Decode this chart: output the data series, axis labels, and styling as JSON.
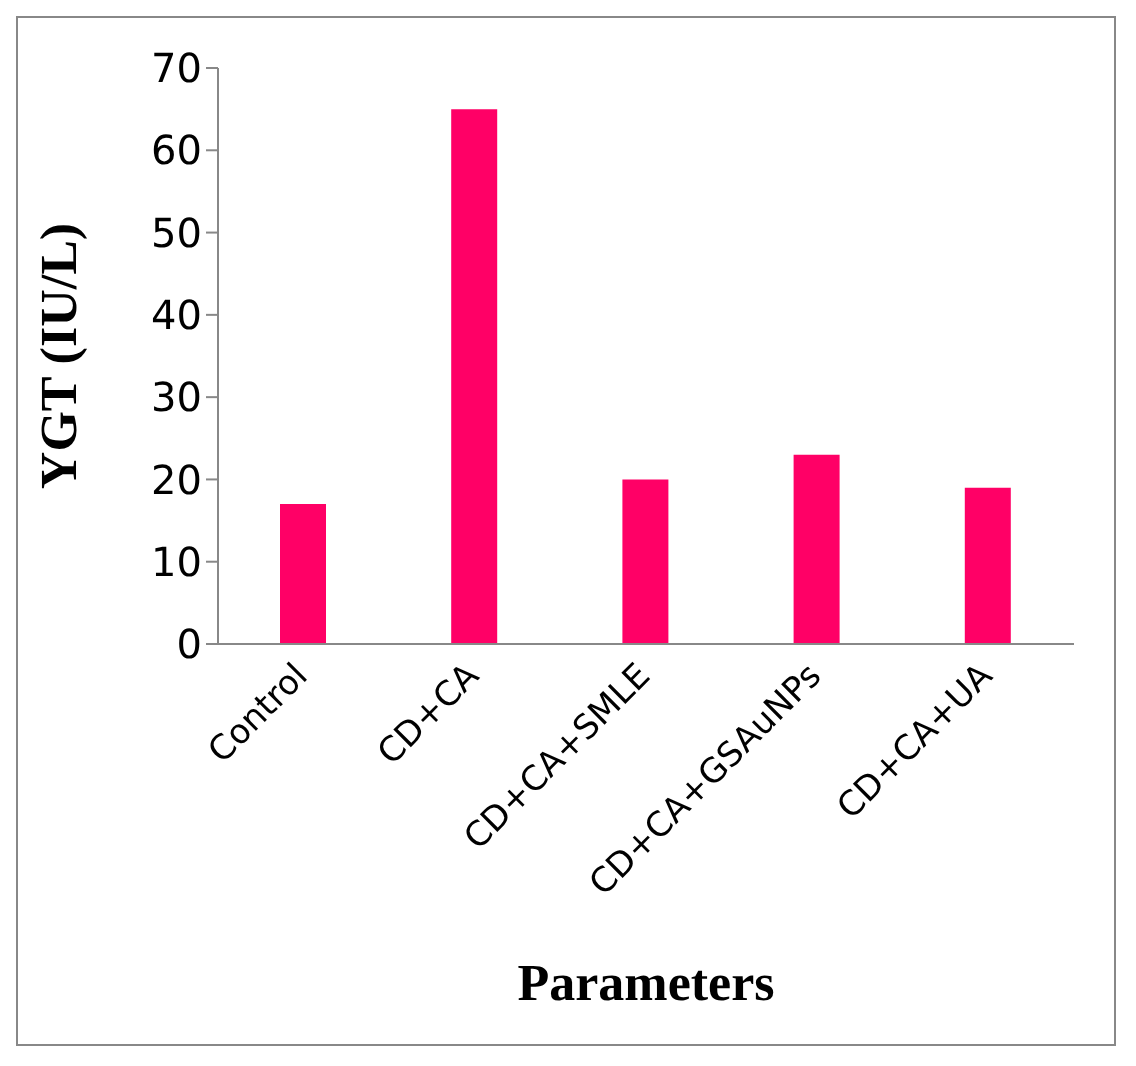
{
  "chart_data": {
    "type": "bar",
    "xlabel": "Parameters",
    "ylabel": "YGT (IU/L)",
    "categories": [
      "Control",
      "CD+CA",
      "CD+CA+SMLE",
      "CD+CA+GSAuNPs",
      "CD+CA+UA"
    ],
    "values": [
      17,
      65,
      20,
      23,
      19
    ],
    "color": "#ff0066",
    "ylim": [
      0,
      70
    ],
    "yticks": [
      0,
      10,
      20,
      30,
      40,
      50,
      60,
      70
    ],
    "grid": false,
    "legend": false
  }
}
